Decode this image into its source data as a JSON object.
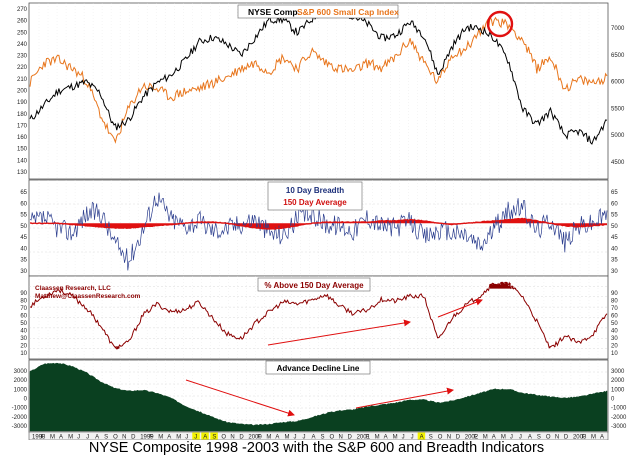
{
  "chart_data": [
    {
      "type": "line",
      "panel": "price",
      "title_series_1": "NYSE Comp.",
      "title_series_2": "S&P 600 Small Cap Index",
      "left_axis_ticks": [
        "270",
        "260",
        "250",
        "240",
        "230",
        "220",
        "210",
        "200",
        "190",
        "180",
        "170",
        "160",
        "150",
        "140",
        "130"
      ],
      "right_axis_ticks": [
        "7000",
        "6500",
        "6000",
        "5500",
        "5000",
        "4500"
      ],
      "series": [
        {
          "name": "NYSE Comp.",
          "color": "#000000",
          "values": [
            172,
            185,
            198,
            202,
            206,
            196,
            165,
            172,
            192,
            205,
            212,
            225,
            242,
            246,
            240,
            230,
            246,
            262,
            262,
            250,
            262,
            272,
            270,
            265,
            258,
            245,
            248,
            260,
            248,
            212,
            238,
            255,
            254,
            245,
            225,
            182,
            168,
            180,
            158,
            162,
            152,
            172
          ]
        },
        {
          "name": "S&P 600 Small Cap Index",
          "color": "#e8761d",
          "values": [
            5950,
            6300,
            6350,
            6200,
            6000,
            5400,
            4900,
            5500,
            5900,
            5850,
            5700,
            5800,
            5850,
            5950,
            6050,
            6200,
            6300,
            6150,
            6400,
            6200,
            6500,
            6300,
            6200,
            6150,
            6300,
            6200,
            6400,
            6700,
            6300,
            5950,
            6450,
            6550,
            6850,
            7050,
            6950,
            6700,
            6200,
            6400,
            5850,
            6000,
            5950,
            6050
          ]
        }
      ],
      "left_ylim": [
        120,
        275
      ],
      "annotation": "highlight circle on S&P 600 peak, Apr 2002"
    },
    {
      "type": "line",
      "panel": "breadth",
      "title": "10 Day Breadth",
      "subtitle": "150 Day Average",
      "ticks": [
        "65",
        "60",
        "55",
        "50",
        "45",
        "40",
        "35",
        "30"
      ],
      "ylim": [
        28,
        68
      ],
      "series": [
        {
          "name": "10 Day Breadth",
          "color": "#2d3f8f",
          "values": [
            50,
            52,
            48,
            46,
            54,
            55,
            42,
            34,
            47,
            62,
            52,
            49,
            51,
            47,
            48,
            50,
            52,
            46,
            45,
            52,
            54,
            50,
            49,
            47,
            53,
            49,
            48,
            51,
            44,
            47,
            46,
            45,
            40,
            48,
            55,
            57,
            47,
            52,
            42,
            49,
            50,
            54
          ]
        },
        {
          "name": "150 Day Average",
          "color": "#dd1111",
          "values": [
            50,
            50,
            50,
            49.5,
            49,
            48.5,
            48,
            48,
            48.5,
            49,
            49.5,
            50,
            50.5,
            50.5,
            50,
            49,
            48,
            47.5,
            48,
            49,
            50,
            50.5,
            50.5,
            50.5,
            50.5,
            51,
            51,
            51.5,
            51,
            50,
            49.5,
            50,
            50.5,
            51,
            51.5,
            52,
            51,
            50,
            49,
            48.5,
            49,
            49.5
          ]
        }
      ]
    },
    {
      "type": "line",
      "panel": "percent-above",
      "title": "% Above 150 Day Average",
      "credit": "Claassen Research, LLC",
      "email": "Matthew@ClaassenResearch.com",
      "ticks": [
        "90",
        "80",
        "70",
        "60",
        "50",
        "40",
        "30",
        "20",
        "10"
      ],
      "ylim": [
        8,
        92
      ],
      "series": [
        {
          "name": "% Above 150 Day Average",
          "color": "#8b0000",
          "values": [
            62,
            72,
            79,
            72,
            60,
            42,
            18,
            24,
            52,
            64,
            56,
            58,
            66,
            49,
            33,
            28,
            44,
            56,
            66,
            64,
            68,
            74,
            62,
            54,
            58,
            69,
            67,
            72,
            72,
            26,
            50,
            63,
            73,
            86,
            84,
            72,
            46,
            17,
            31,
            23,
            33,
            54
          ]
        }
      ],
      "annotations": [
        "trend arrow Dec 2000 to Sep 2001",
        "trend arrow Sep 2001 to Mar 2002"
      ]
    },
    {
      "type": "area",
      "panel": "advance-decline",
      "title": "Advance Decline Line",
      "ticks": [
        "3000",
        "2000",
        "1000",
        "0",
        "-1000",
        "-2000",
        "-3000"
      ],
      "ylim": [
        -3600,
        3600
      ],
      "series": [
        {
          "name": "Advance Decline Line",
          "color": "#0a4020",
          "values": [
            2500,
            3300,
            3400,
            3050,
            2400,
            1500,
            800,
            500,
            600,
            300,
            -200,
            -1000,
            -1600,
            -2200,
            -2700,
            -2900,
            -3000,
            -2900,
            -2700,
            -2600,
            -2200,
            -1800,
            -1500,
            -1400,
            -1100,
            -900,
            -700,
            -400,
            -400,
            -700,
            -500,
            -100,
            300,
            700,
            700,
            300,
            100,
            -100,
            -200,
            -100,
            200,
            500
          ]
        }
      ],
      "annotations": [
        "falling arrow early 1999 to mid 2000",
        "rising arrow Feb 2001 to mid 2001"
      ]
    }
  ],
  "x_axis": {
    "years": [
      "1998",
      "1999",
      "2000",
      "2001",
      "2002",
      "2003"
    ],
    "months": [
      "F",
      "M",
      "A",
      "M",
      "J",
      "J",
      "A",
      "S",
      "O",
      "N",
      "D",
      "1999",
      "F",
      "M",
      "A",
      "M",
      "J",
      "J",
      "A",
      "S",
      "O",
      "N",
      "D",
      "2000",
      "F",
      "M",
      "A",
      "M",
      "J",
      "J",
      "A",
      "S",
      "O",
      "N",
      "D",
      "2001",
      "F",
      "M",
      "A",
      "M",
      "J",
      "J",
      "A",
      "S",
      "O",
      "N",
      "D",
      "2002",
      "F",
      "M",
      "A",
      "M",
      "J",
      "J",
      "A",
      "S",
      "O",
      "N",
      "D",
      "2003",
      "F",
      "M",
      "A"
    ],
    "highlighted": [
      "O",
      "N",
      "D",
      "S"
    ]
  },
  "caption": "NYSE Composite 1998 -2003 with the S&P 600 and Breadth Indicators"
}
